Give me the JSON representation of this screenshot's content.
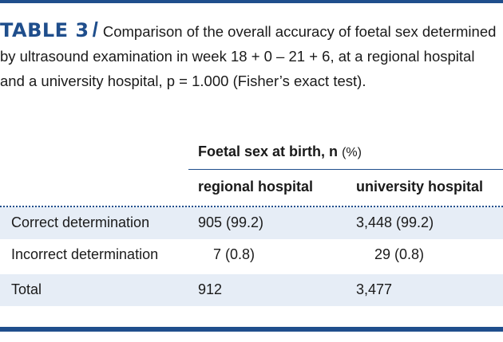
{
  "caption": {
    "tag": "TABLE 3",
    "slash": "/",
    "text": "Comparison of the overall accuracy of foetal sex determined by ultrasound examination in week 18 + 0 – 21 + 6, at a regional hospital and a university hospital, p = 1.000 (Fisher’s exact test)."
  },
  "table": {
    "group_header": "Foetal sex at birth, n",
    "group_header_unit": "(%)",
    "columns": [
      "regional hospital",
      "university hospital"
    ],
    "rows": [
      {
        "label": "Correct determination",
        "regional": "905 (99.2)",
        "university": "3,448 (99.2)"
      },
      {
        "label": "Incorrect determination",
        "regional": "7 (0.8)",
        "university": "29 (0.8)"
      },
      {
        "label": "Total",
        "regional": "912",
        "university": "3,477"
      }
    ]
  },
  "colors": {
    "accent": "#1f4e8c",
    "row_shade": "#e6edf6"
  }
}
